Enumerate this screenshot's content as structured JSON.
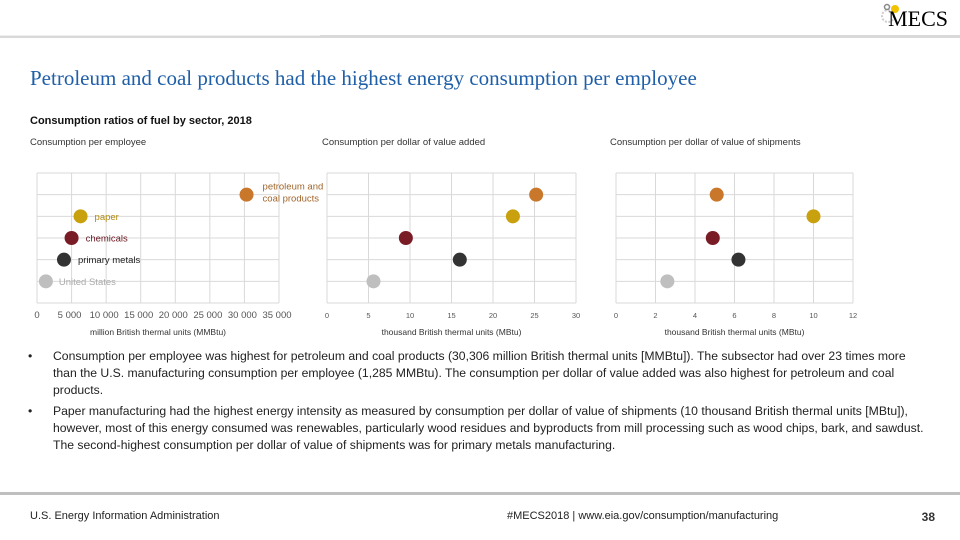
{
  "header": {
    "logo_text": "MECS"
  },
  "title": "Petroleum and coal products had the highest energy consumption per employee",
  "subtitle": "Consumption ratios of fuel by sector, 2018",
  "colors": {
    "petroleum": "#c8772b",
    "paper": "#c9a00e",
    "chemicals": "#7a1c26",
    "primary_metals": "#333333",
    "united_states": "#bfbfbf",
    "title": "#1f5fa8",
    "grid": "#d9d9d9"
  },
  "chart_data": [
    {
      "type": "scatter",
      "title": "Consumption per employee",
      "xlabel": "million British thermal units (MMBtu)",
      "xlim": [
        0,
        35000
      ],
      "xticks": [
        0,
        5000,
        10000,
        15000,
        20000,
        25000,
        30000,
        35000
      ],
      "xtick_labels": [
        "0",
        "5 000",
        "10 000",
        "15 000",
        "20 000",
        "25 000",
        "30 000",
        "35 000"
      ],
      "grid": true,
      "points": [
        {
          "label": "petroleum and coal products",
          "x": 30306,
          "row": 5
        },
        {
          "label": "paper",
          "x": 6300,
          "row": 4
        },
        {
          "label": "chemicals",
          "x": 5000,
          "row": 3
        },
        {
          "label": "primary metals",
          "x": 3900,
          "row": 2
        },
        {
          "label": "United States",
          "x": 1285,
          "row": 1
        }
      ]
    },
    {
      "type": "scatter",
      "title": "Consumption per dollar of value added",
      "xlabel": "thousand British thermal units (MBtu)",
      "xlim": [
        0,
        30
      ],
      "xticks": [
        0,
        5,
        10,
        15,
        20,
        25,
        30
      ],
      "xtick_labels": [
        "0",
        "5",
        "10",
        "15",
        "20",
        "25",
        "30"
      ],
      "grid": true,
      "points": [
        {
          "label": "petroleum and coal products",
          "x": 25.2,
          "row": 5
        },
        {
          "label": "paper",
          "x": 22.4,
          "row": 4
        },
        {
          "label": "chemicals",
          "x": 9.5,
          "row": 3
        },
        {
          "label": "primary metals",
          "x": 16.0,
          "row": 2
        },
        {
          "label": "United States",
          "x": 5.6,
          "row": 1
        }
      ]
    },
    {
      "type": "scatter",
      "title": "Consumption per dollar of value of shipments",
      "xlabel": "thousand British thermal units (MBtu)",
      "xlim": [
        0,
        12
      ],
      "xticks": [
        0,
        2,
        4,
        6,
        8,
        10,
        12
      ],
      "xtick_labels": [
        "0",
        "2",
        "4",
        "6",
        "8",
        "10",
        "12"
      ],
      "grid": true,
      "points": [
        {
          "label": "petroleum and coal products",
          "x": 5.1,
          "row": 5
        },
        {
          "label": "paper",
          "x": 10.0,
          "row": 4
        },
        {
          "label": "chemicals",
          "x": 4.9,
          "row": 3
        },
        {
          "label": "primary metals",
          "x": 6.2,
          "row": 2
        },
        {
          "label": "United States",
          "x": 2.6,
          "row": 1
        }
      ]
    }
  ],
  "bullets": [
    "Consumption per employee was highest for petroleum and coal products (30,306 million British thermal units [MMBtu]). The subsector had over 23 times more than the U.S. manufacturing consumption per employee (1,285 MMBtu). The consumption per dollar of value added was also highest for petroleum and coal products.",
    "Paper manufacturing had the highest energy intensity as measured by consumption per dollar of value of shipments (10 thousand British thermal units [MBtu]), however, most of this energy consumed was renewables, particularly wood residues and byproducts from mill processing such as wood chips, bark, and sawdust. The second-highest consumption per dollar of value of shipments was for primary metals manufacturing."
  ],
  "bullet_symbol": "•",
  "footer": {
    "left": "U.S. Energy Information Administration",
    "center": "#MECS2018 | www.eia.gov/consumption/manufacturing",
    "page": "38"
  }
}
